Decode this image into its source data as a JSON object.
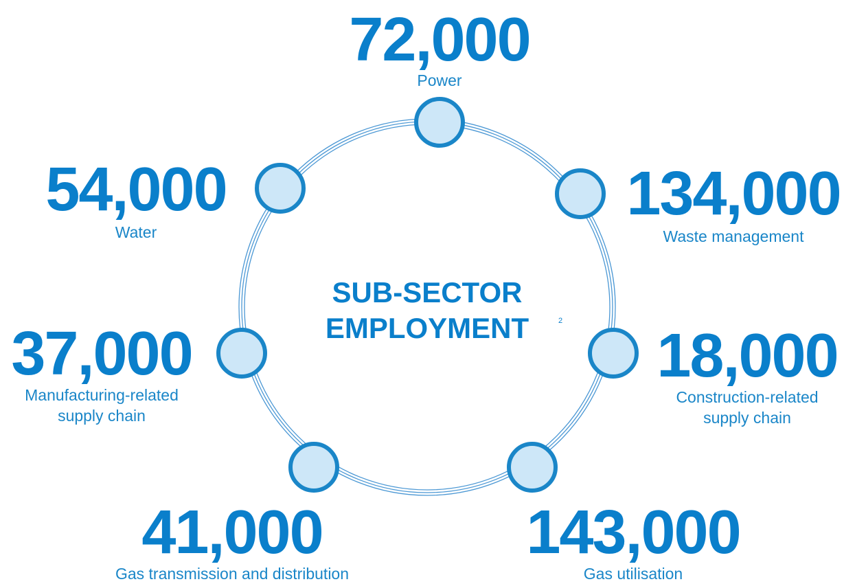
{
  "title": {
    "lines": [
      "SUB-SECTOR",
      "EMPLOYMENT"
    ],
    "footnote": "2"
  },
  "nodes": [
    {
      "value": "72,000",
      "label": [
        "Power"
      ]
    },
    {
      "value": "134,000",
      "label": [
        "Waste management"
      ]
    },
    {
      "value": "18,000",
      "label": [
        "Construction-related",
        "supply chain"
      ]
    },
    {
      "value": "143,000",
      "label": [
        "Gas utilisation"
      ]
    },
    {
      "value": "41,000",
      "label": [
        "Gas transmission and distribution"
      ]
    },
    {
      "value": "37,000",
      "label": [
        "Manufacturing-related",
        "supply chain"
      ]
    },
    {
      "value": "54,000",
      "label": [
        "Water"
      ]
    }
  ]
}
